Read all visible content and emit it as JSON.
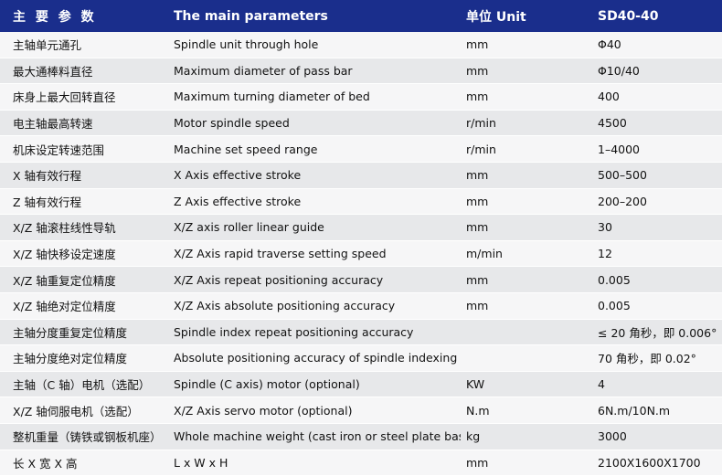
{
  "header": {
    "col1": "主 要 参 数",
    "col2": "The main parameters",
    "col3": "单位 Unit",
    "col4": "SD40-40"
  },
  "rows": [
    {
      "cn": "主轴单元通孔",
      "en": "Spindle unit through hole",
      "unit": "mm",
      "value": "Φ40"
    },
    {
      "cn": "最大通棒料直径",
      "en": "Maximum diameter of pass bar",
      "unit": "mm",
      "value": "Φ10/40"
    },
    {
      "cn": "床身上最大回转直径",
      "en": "Maximum turning diameter of bed",
      "unit": "mm",
      "value": "400"
    },
    {
      "cn": "电主轴最高转速",
      "en": "Motor spindle speed",
      "unit": "r/min",
      "value": "4500"
    },
    {
      "cn": "机床设定转速范围",
      "en": "Machine set speed range",
      "unit": "r/min",
      "value": "1–4000"
    },
    {
      "cn": "X 轴有效行程",
      "en": "X Axis effective stroke",
      "unit": "mm",
      "value": "500–500"
    },
    {
      "cn": "Z 轴有效行程",
      "en": "Z Axis effective stroke",
      "unit": "mm",
      "value": "200–200"
    },
    {
      "cn": "X/Z 轴滚柱线性导轨",
      "en": "X/Z axis roller linear guide",
      "unit": "mm",
      "value": "30"
    },
    {
      "cn": "X/Z 轴快移设定速度",
      "en": "X/Z Axis rapid traverse setting speed",
      "unit": "m/min",
      "value": "12"
    },
    {
      "cn": "X/Z 轴重复定位精度",
      "en": "X/Z Axis repeat positioning accuracy",
      "unit": "mm",
      "value": "0.005"
    },
    {
      "cn": "X/Z 轴绝对定位精度",
      "en": "X/Z Axis absolute positioning accuracy",
      "unit": "mm",
      "value": "0.005"
    },
    {
      "cn": "主轴分度重复定位精度",
      "en": "Spindle index repeat positioning accuracy",
      "unit": "",
      "value": "≤ 20 角秒，即 0.006°"
    },
    {
      "cn": "主轴分度绝对定位精度",
      "en": "Absolute positioning accuracy of spindle indexing",
      "unit": "",
      "value": "70 角秒，即 0.02°"
    },
    {
      "cn": "主轴（C 轴）电机（选配）",
      "en": "Spindle (C axis) motor (optional)",
      "unit": "KW",
      "value": "4"
    },
    {
      "cn": "X/Z 轴伺服电机（选配）",
      "en": "X/Z Axis servo motor (optional)",
      "unit": "N.m",
      "value": "6N.m/10N.m"
    },
    {
      "cn": "整机重量（铸铁或钢板机座）",
      "en": "Whole machine weight (cast iron or steel plate base)",
      "unit": "kg",
      "value": "3000"
    },
    {
      "cn": "长 X 宽 X 高",
      "en": "L x W x H",
      "unit": "mm",
      "value": "2100X1600X1700"
    }
  ]
}
